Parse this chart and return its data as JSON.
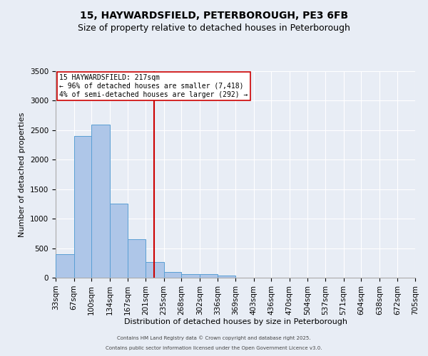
{
  "title": "15, HAYWARDSFIELD, PETERBOROUGH, PE3 6FB",
  "subtitle": "Size of property relative to detached houses in Peterborough",
  "xlabel": "Distribution of detached houses by size in Peterborough",
  "ylabel": "Number of detached properties",
  "bin_edges": [
    33,
    67,
    100,
    134,
    167,
    201,
    235,
    268,
    302,
    336,
    369,
    403,
    436,
    470,
    504,
    537,
    571,
    604,
    638,
    672,
    705
  ],
  "bar_heights": [
    400,
    2400,
    2600,
    1250,
    650,
    270,
    100,
    60,
    55,
    35,
    0,
    0,
    0,
    0,
    0,
    0,
    0,
    0,
    0,
    0
  ],
  "bar_color": "#aec6e8",
  "bar_edge_color": "#5a9fd4",
  "vline_x": 217,
  "vline_color": "#cc0000",
  "annotation_title": "15 HAYWARDSFIELD: 217sqm",
  "annotation_line1": "← 96% of detached houses are smaller (7,418)",
  "annotation_line2": "4% of semi-detached houses are larger (292) →",
  "annotation_box_color": "#ffffff",
  "annotation_border_color": "#cc0000",
  "ylim": [
    0,
    3500
  ],
  "yticks": [
    0,
    500,
    1000,
    1500,
    2000,
    2500,
    3000,
    3500
  ],
  "bg_color": "#e8edf5",
  "footnote1": "Contains HM Land Registry data © Crown copyright and database right 2025.",
  "footnote2": "Contains public sector information licensed under the Open Government Licence v3.0.",
  "title_fontsize": 10,
  "subtitle_fontsize": 9,
  "xlabel_fontsize": 8,
  "ylabel_fontsize": 8,
  "tick_fontsize": 7.5,
  "annotation_fontsize": 7,
  "footnote_fontsize": 5
}
